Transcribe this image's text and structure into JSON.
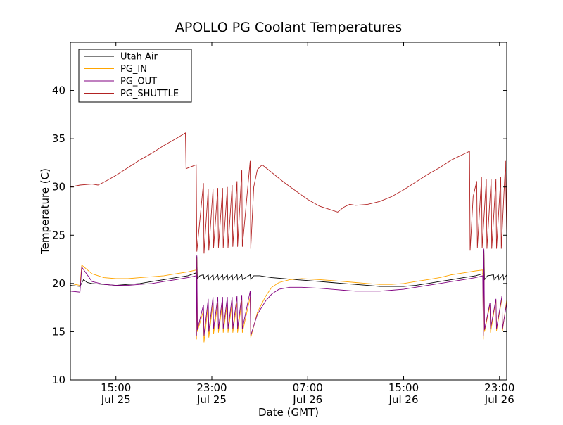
{
  "chart_data": {
    "type": "line",
    "title": "APOLLO PG Coolant Temperatures",
    "xlabel": "Date (GMT)",
    "ylabel": "Temperature (C)",
    "x_unit": "hours (GMT), Jul 25 00:00 = 0",
    "xlim": [
      11.2,
      47.6
    ],
    "ylim": [
      10,
      45
    ],
    "yticks": [
      10,
      15,
      20,
      25,
      30,
      35,
      40
    ],
    "xticks": [
      {
        "value": 15,
        "line1": "15:00",
        "line2": "Jul 25"
      },
      {
        "value": 23,
        "line1": "23:00",
        "line2": "Jul 25"
      },
      {
        "value": 31,
        "line1": "07:00",
        "line2": "Jul 26"
      },
      {
        "value": 39,
        "line1": "15:00",
        "line2": "Jul 26"
      },
      {
        "value": 47,
        "line1": "23:00",
        "line2": "Jul 26"
      }
    ],
    "grid": false,
    "legend_position": "top-left",
    "series": [
      {
        "name": "Utah Air",
        "color": "#000000",
        "points": [
          [
            11.2,
            19.8
          ],
          [
            12,
            19.7
          ],
          [
            12.3,
            20.4
          ],
          [
            12.6,
            20.1
          ],
          [
            13,
            20.0
          ],
          [
            14,
            19.9
          ],
          [
            15,
            19.8
          ],
          [
            16,
            19.9
          ],
          [
            17,
            20.0
          ],
          [
            18,
            20.2
          ],
          [
            19,
            20.4
          ],
          [
            20,
            20.6
          ],
          [
            21,
            20.8
          ],
          [
            21.7,
            21.1
          ],
          [
            21.72,
            20.5
          ],
          [
            21.75,
            22.8
          ],
          [
            21.8,
            20.5
          ],
          [
            22,
            20.8
          ],
          [
            22.3,
            20.9
          ],
          [
            22.35,
            20.5
          ],
          [
            22.7,
            20.9
          ],
          [
            22.75,
            20.4
          ],
          [
            23.1,
            20.9
          ],
          [
            23.15,
            20.4
          ],
          [
            23.5,
            20.9
          ],
          [
            23.55,
            20.4
          ],
          [
            23.9,
            20.9
          ],
          [
            23.95,
            20.4
          ],
          [
            24.3,
            20.9
          ],
          [
            24.35,
            20.4
          ],
          [
            24.7,
            20.9
          ],
          [
            24.75,
            20.4
          ],
          [
            25.1,
            20.9
          ],
          [
            25.15,
            20.4
          ],
          [
            25.5,
            20.9
          ],
          [
            25.55,
            20.4
          ],
          [
            26.2,
            20.9
          ],
          [
            26.25,
            20.4
          ],
          [
            26.5,
            20.8
          ],
          [
            27,
            20.8
          ],
          [
            28,
            20.6
          ],
          [
            29,
            20.5
          ],
          [
            30,
            20.4
          ],
          [
            31,
            20.3
          ],
          [
            32,
            20.2
          ],
          [
            33,
            20.1
          ],
          [
            34,
            20.0
          ],
          [
            35,
            19.9
          ],
          [
            36,
            19.8
          ],
          [
            37,
            19.7
          ],
          [
            38,
            19.7
          ],
          [
            39,
            19.7
          ],
          [
            40,
            19.8
          ],
          [
            41,
            20.0
          ],
          [
            42,
            20.2
          ],
          [
            43,
            20.4
          ],
          [
            44,
            20.6
          ],
          [
            45,
            20.8
          ],
          [
            45.6,
            21.0
          ],
          [
            45.65,
            20.4
          ],
          [
            45.7,
            23.4
          ],
          [
            45.75,
            20.4
          ],
          [
            46,
            20.8
          ],
          [
            46.5,
            20.9
          ],
          [
            46.55,
            20.4
          ],
          [
            46.9,
            20.9
          ],
          [
            46.95,
            20.4
          ],
          [
            47.3,
            20.9
          ],
          [
            47.35,
            20.4
          ],
          [
            47.6,
            20.9
          ]
        ]
      },
      {
        "name": "PG_IN",
        "color": "#ffa500",
        "points": [
          [
            11.2,
            20.0
          ],
          [
            12,
            19.8
          ],
          [
            12.15,
            21.9
          ],
          [
            13,
            21.0
          ],
          [
            14,
            20.6
          ],
          [
            15,
            20.5
          ],
          [
            16,
            20.5
          ],
          [
            17,
            20.6
          ],
          [
            18,
            20.7
          ],
          [
            19,
            20.8
          ],
          [
            20,
            21.0
          ],
          [
            21,
            21.2
          ],
          [
            21.7,
            21.4
          ],
          [
            21.72,
            14.2
          ],
          [
            21.75,
            22.7
          ],
          [
            21.8,
            15.0
          ],
          [
            22.3,
            17.2
          ],
          [
            22.35,
            13.9
          ],
          [
            22.7,
            17.8
          ],
          [
            22.75,
            14.4
          ],
          [
            23.1,
            18.0
          ],
          [
            23.15,
            14.8
          ],
          [
            23.5,
            18.0
          ],
          [
            23.55,
            14.9
          ],
          [
            23.9,
            18.0
          ],
          [
            23.95,
            14.9
          ],
          [
            24.3,
            18.0
          ],
          [
            24.35,
            14.9
          ],
          [
            24.7,
            18.0
          ],
          [
            24.75,
            14.9
          ],
          [
            25.1,
            18.0
          ],
          [
            25.15,
            14.9
          ],
          [
            25.5,
            18.2
          ],
          [
            25.55,
            14.9
          ],
          [
            26.2,
            18.6
          ],
          [
            26.25,
            14.4
          ],
          [
            26.8,
            17.0
          ],
          [
            27.5,
            18.7
          ],
          [
            28,
            19.6
          ],
          [
            28.6,
            20.1
          ],
          [
            29.5,
            20.4
          ],
          [
            30.5,
            20.5
          ],
          [
            32,
            20.4
          ],
          [
            33,
            20.3
          ],
          [
            34,
            20.2
          ],
          [
            35,
            20.1
          ],
          [
            36,
            20.0
          ],
          [
            37,
            19.9
          ],
          [
            38,
            19.9
          ],
          [
            39,
            20.0
          ],
          [
            40,
            20.2
          ],
          [
            41,
            20.4
          ],
          [
            42,
            20.6
          ],
          [
            43,
            20.9
          ],
          [
            44,
            21.1
          ],
          [
            45,
            21.3
          ],
          [
            45.6,
            21.4
          ],
          [
            45.65,
            14.2
          ],
          [
            45.7,
            23.2
          ],
          [
            45.75,
            15.0
          ],
          [
            46.2,
            17.8
          ],
          [
            46.25,
            14.9
          ],
          [
            46.7,
            18.3
          ],
          [
            46.75,
            15.1
          ],
          [
            47.2,
            18.5
          ],
          [
            47.25,
            15.1
          ],
          [
            47.6,
            18.3
          ]
        ]
      },
      {
        "name": "PG_OUT",
        "color": "#800080",
        "points": [
          [
            11.2,
            19.2
          ],
          [
            12,
            19.1
          ],
          [
            12.15,
            21.7
          ],
          [
            13,
            20.2
          ],
          [
            14,
            19.9
          ],
          [
            15,
            19.8
          ],
          [
            16,
            19.8
          ],
          [
            17,
            19.9
          ],
          [
            18,
            20.0
          ],
          [
            19,
            20.2
          ],
          [
            20,
            20.4
          ],
          [
            21,
            20.6
          ],
          [
            21.7,
            20.8
          ],
          [
            21.72,
            14.6
          ],
          [
            21.75,
            22.9
          ],
          [
            21.8,
            15.2
          ],
          [
            22.3,
            17.8
          ],
          [
            22.35,
            14.6
          ],
          [
            22.7,
            18.4
          ],
          [
            22.75,
            15.0
          ],
          [
            23.1,
            18.6
          ],
          [
            23.15,
            15.3
          ],
          [
            23.5,
            18.6
          ],
          [
            23.55,
            15.3
          ],
          [
            23.9,
            18.6
          ],
          [
            23.95,
            15.3
          ],
          [
            24.3,
            18.6
          ],
          [
            24.35,
            15.3
          ],
          [
            24.7,
            18.6
          ],
          [
            24.75,
            15.3
          ],
          [
            25.1,
            18.7
          ],
          [
            25.15,
            15.3
          ],
          [
            25.5,
            18.8
          ],
          [
            25.55,
            15.3
          ],
          [
            26.2,
            19.2
          ],
          [
            26.25,
            14.6
          ],
          [
            26.8,
            16.8
          ],
          [
            27.5,
            18.2
          ],
          [
            28,
            18.9
          ],
          [
            28.6,
            19.4
          ],
          [
            29.5,
            19.6
          ],
          [
            30.5,
            19.6
          ],
          [
            32,
            19.5
          ],
          [
            33,
            19.4
          ],
          [
            34,
            19.3
          ],
          [
            35,
            19.2
          ],
          [
            36,
            19.2
          ],
          [
            37,
            19.2
          ],
          [
            38,
            19.3
          ],
          [
            39,
            19.4
          ],
          [
            40,
            19.6
          ],
          [
            41,
            19.8
          ],
          [
            42,
            20.0
          ],
          [
            43,
            20.2
          ],
          [
            44,
            20.4
          ],
          [
            45,
            20.6
          ],
          [
            45.6,
            20.8
          ],
          [
            45.65,
            14.6
          ],
          [
            45.7,
            23.6
          ],
          [
            45.75,
            15.2
          ],
          [
            46.2,
            18.0
          ],
          [
            46.25,
            15.3
          ],
          [
            46.7,
            18.4
          ],
          [
            46.75,
            15.3
          ],
          [
            47.2,
            18.7
          ],
          [
            47.25,
            15.3
          ],
          [
            47.6,
            18.0
          ]
        ]
      },
      {
        "name": "PG_SHUTTLE",
        "color": "#b22222",
        "points": [
          [
            11.2,
            30.0
          ],
          [
            12,
            30.2
          ],
          [
            13,
            30.3
          ],
          [
            13.5,
            30.2
          ],
          [
            14,
            30.5
          ],
          [
            15,
            31.2
          ],
          [
            16,
            32.0
          ],
          [
            17,
            32.8
          ],
          [
            18,
            33.5
          ],
          [
            19,
            34.3
          ],
          [
            20,
            35.0
          ],
          [
            20.8,
            35.6
          ],
          [
            20.85,
            31.9
          ],
          [
            21.7,
            32.3
          ],
          [
            21.75,
            23.3
          ],
          [
            22.3,
            30.4
          ],
          [
            22.35,
            23.1
          ],
          [
            22.7,
            29.8
          ],
          [
            22.75,
            23.4
          ],
          [
            23.1,
            29.8
          ],
          [
            23.15,
            23.7
          ],
          [
            23.5,
            29.9
          ],
          [
            23.55,
            23.7
          ],
          [
            23.9,
            29.9
          ],
          [
            23.95,
            23.7
          ],
          [
            24.3,
            30.0
          ],
          [
            24.35,
            23.7
          ],
          [
            24.7,
            30.2
          ],
          [
            24.75,
            23.8
          ],
          [
            25.1,
            30.6
          ],
          [
            25.15,
            23.8
          ],
          [
            25.5,
            31.8
          ],
          [
            25.55,
            23.8
          ],
          [
            26.2,
            32.7
          ],
          [
            26.25,
            23.6
          ],
          [
            26.5,
            30.0
          ],
          [
            26.8,
            31.8
          ],
          [
            27.2,
            32.3
          ],
          [
            28,
            31.5
          ],
          [
            29,
            30.5
          ],
          [
            30,
            29.6
          ],
          [
            31,
            28.7
          ],
          [
            32,
            28.0
          ],
          [
            33,
            27.6
          ],
          [
            33.5,
            27.4
          ],
          [
            34,
            27.9
          ],
          [
            34.5,
            28.2
          ],
          [
            35,
            28.1
          ],
          [
            36,
            28.2
          ],
          [
            37,
            28.5
          ],
          [
            38,
            29.0
          ],
          [
            39,
            29.7
          ],
          [
            40,
            30.5
          ],
          [
            41,
            31.3
          ],
          [
            42,
            32.0
          ],
          [
            43,
            32.8
          ],
          [
            44,
            33.4
          ],
          [
            44.5,
            33.7
          ],
          [
            44.55,
            23.4
          ],
          [
            44.8,
            29.0
          ],
          [
            45.1,
            30.6
          ],
          [
            45.15,
            23.7
          ],
          [
            45.5,
            31.0
          ],
          [
            45.55,
            23.7
          ],
          [
            45.9,
            30.8
          ],
          [
            45.95,
            23.6
          ],
          [
            46.3,
            30.8
          ],
          [
            46.35,
            23.6
          ],
          [
            46.7,
            30.8
          ],
          [
            46.75,
            23.6
          ],
          [
            47.1,
            31.0
          ],
          [
            47.15,
            23.6
          ],
          [
            47.5,
            32.7
          ],
          [
            47.6,
            25.0
          ]
        ]
      }
    ]
  }
}
